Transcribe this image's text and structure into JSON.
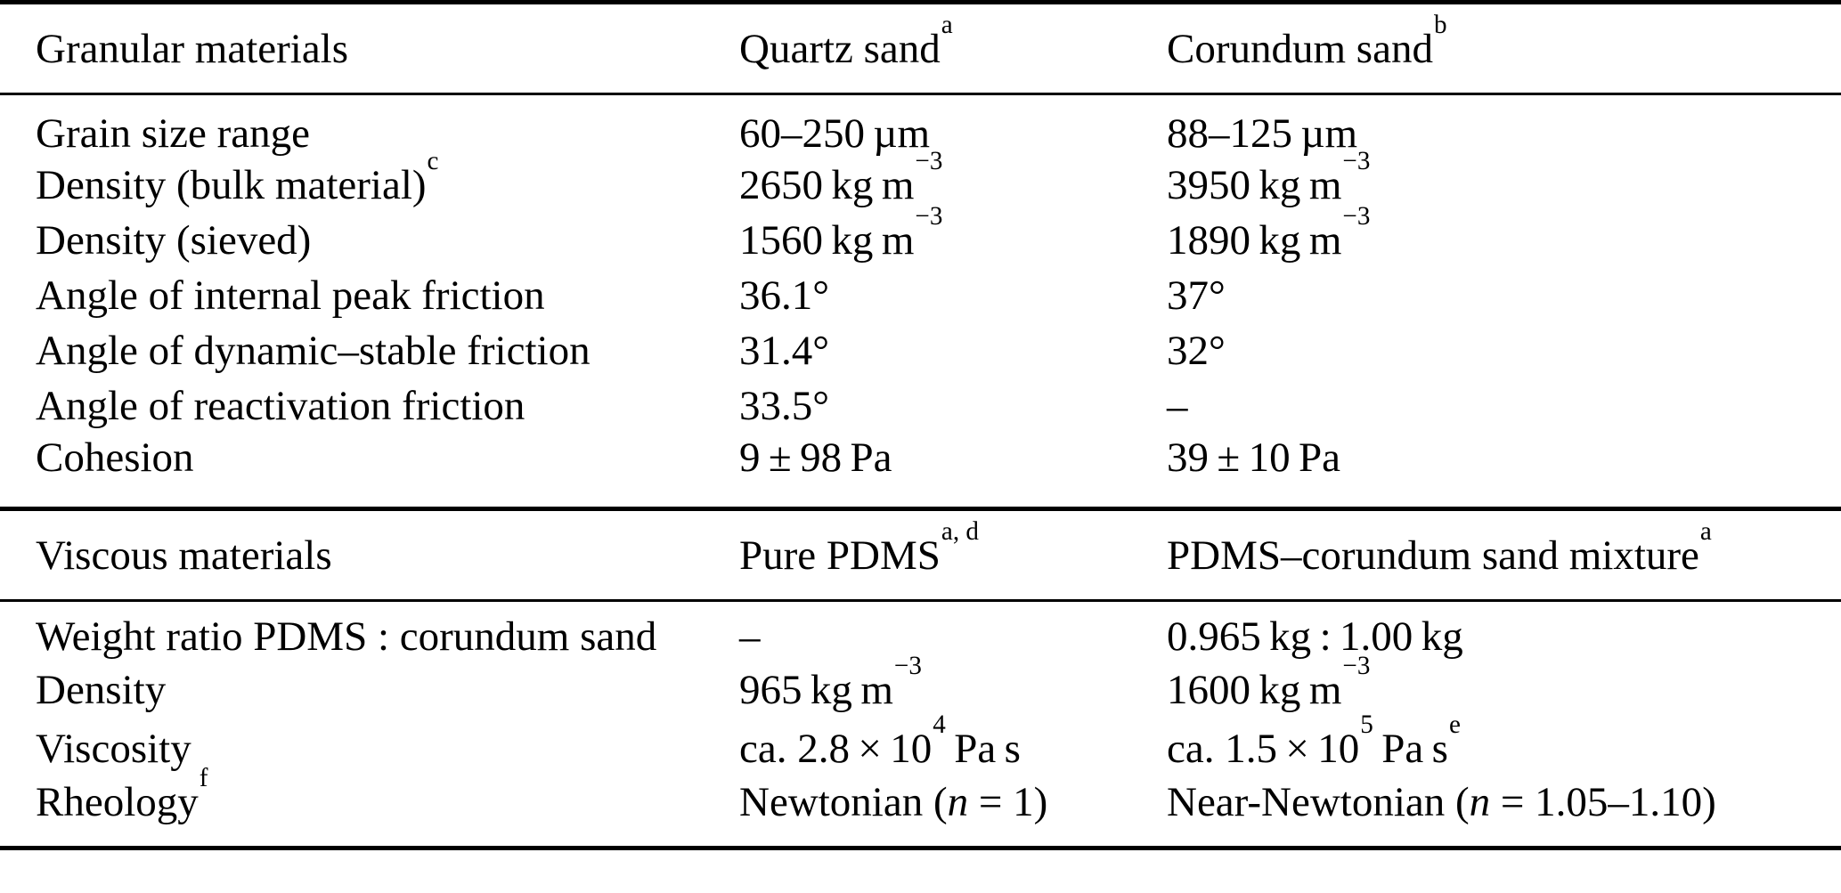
{
  "table": {
    "columns": 3,
    "text_color": "#000000",
    "background_color": "#ffffff",
    "rule_color": "#000000",
    "sections": [
      {
        "header": {
          "label": [
            {
              "t": "Granular materials"
            }
          ],
          "col2": [
            {
              "t": "Quartz sand"
            },
            {
              "sup": "a"
            }
          ],
          "col3": [
            {
              "t": "Corundum sand"
            },
            {
              "sup": "b"
            }
          ]
        },
        "rows": [
          {
            "label": [
              {
                "t": "Grain size range"
              }
            ],
            "col2": [
              {
                "t": "60–250 µm"
              }
            ],
            "col3": [
              {
                "t": "88–125 µm"
              }
            ]
          },
          {
            "label": [
              {
                "t": "Density (bulk material)"
              },
              {
                "sup": "c"
              }
            ],
            "col2": [
              {
                "t": "2650 kg m"
              },
              {
                "sup": "−3"
              }
            ],
            "col3": [
              {
                "t": "3950 kg m"
              },
              {
                "sup": "−3"
              }
            ]
          },
          {
            "label": [
              {
                "t": "Density (sieved)"
              }
            ],
            "col2": [
              {
                "t": "1560 kg m"
              },
              {
                "sup": "−3"
              }
            ],
            "col3": [
              {
                "t": "1890 kg m"
              },
              {
                "sup": "−3"
              }
            ]
          },
          {
            "label": [
              {
                "t": "Angle of internal peak friction"
              }
            ],
            "col2": [
              {
                "t": "36.1°"
              }
            ],
            "col3": [
              {
                "t": "37°"
              }
            ]
          },
          {
            "label": [
              {
                "t": "Angle of dynamic–stable friction"
              }
            ],
            "col2": [
              {
                "t": "31.4°"
              }
            ],
            "col3": [
              {
                "t": "32°"
              }
            ]
          },
          {
            "label": [
              {
                "t": "Angle of reactivation friction"
              }
            ],
            "col2": [
              {
                "t": "33.5°"
              }
            ],
            "col3": [
              {
                "t": "–"
              }
            ]
          },
          {
            "label": [
              {
                "t": "Cohesion"
              }
            ],
            "col2": [
              {
                "t": "9 ± 98 Pa"
              }
            ],
            "col3": [
              {
                "t": "39 ± 10 Pa"
              }
            ]
          }
        ]
      },
      {
        "header": {
          "label": [
            {
              "t": "Viscous materials"
            }
          ],
          "col2": [
            {
              "t": "Pure PDMS"
            },
            {
              "sup": "a, d"
            }
          ],
          "col3": [
            {
              "t": "PDMS–corundum sand mixture"
            },
            {
              "sup": "a"
            }
          ]
        },
        "rows": [
          {
            "label": [
              {
                "t": "Weight ratio PDMS : corundum sand"
              }
            ],
            "col2": [
              {
                "t": "–"
              }
            ],
            "col3": [
              {
                "t": "0.965 kg : 1.00 kg"
              }
            ]
          },
          {
            "label": [
              {
                "t": "Density"
              }
            ],
            "col2": [
              {
                "t": "965 kg m"
              },
              {
                "sup": "−3"
              }
            ],
            "col3": [
              {
                "t": "1600 kg m"
              },
              {
                "sup": "−3"
              }
            ]
          },
          {
            "label": [
              {
                "t": "Viscosity"
              }
            ],
            "col2": [
              {
                "t": "ca. 2.8 × 10"
              },
              {
                "sup": "4"
              },
              {
                "t": " Pa s"
              }
            ],
            "col3": [
              {
                "t": "ca. 1.5 × 10"
              },
              {
                "sup": "5"
              },
              {
                "t": " Pa s"
              },
              {
                "sup": "e"
              }
            ]
          },
          {
            "label": [
              {
                "t": "Rheology"
              },
              {
                "sup": "f"
              }
            ],
            "col2": [
              {
                "t": "Newtonian ("
              },
              {
                "i": "n"
              },
              {
                "t": " = 1)"
              }
            ],
            "col3": [
              {
                "t": "Near-Newtonian ("
              },
              {
                "i": "n"
              },
              {
                "t": " = 1.05–1.10)"
              }
            ]
          }
        ]
      }
    ]
  }
}
